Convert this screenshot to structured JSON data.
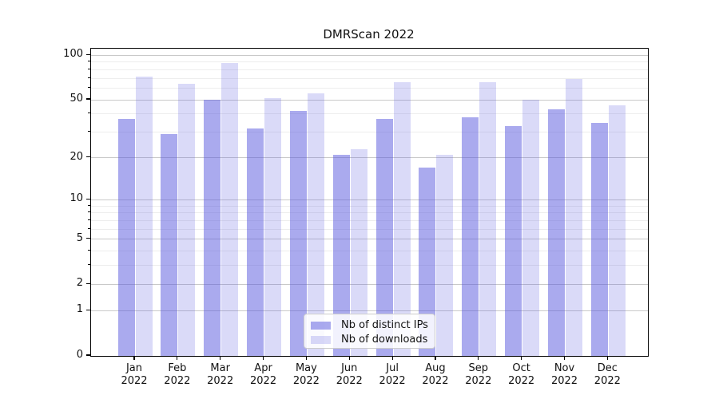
{
  "figure_title": "DMRScan 2022",
  "chart_data": {
    "type": "bar",
    "title": "DMRScan 2022",
    "categories": [
      "Jan 2022",
      "Feb 2022",
      "Mar 2022",
      "Apr 2022",
      "May 2022",
      "Jun 2022",
      "Jul 2022",
      "Aug 2022",
      "Sep 2022",
      "Oct 2022",
      "Nov 2022",
      "Dec 2022"
    ],
    "series": [
      {
        "name": "Nb of distinct IPs",
        "base_color": "#5555dd",
        "alpha": 0.5,
        "rendered_color": "#aaaaee",
        "values": [
          37,
          29,
          50,
          32,
          42,
          21,
          37,
          17,
          38,
          33,
          43,
          35
        ]
      },
      {
        "name": "Nb of downloads",
        "base_color": "#5555dd",
        "alpha": 0.22,
        "rendered_color": "#dadaf7",
        "values": [
          72,
          64,
          89,
          51,
          55,
          23,
          66,
          21,
          66,
          50,
          69,
          46
        ]
      }
    ],
    "xlabel": "",
    "ylabel": "",
    "yscale": "log1p",
    "ylim": [
      0,
      110
    ],
    "y_tick_values": [
      0,
      1,
      2,
      5,
      10,
      20,
      50,
      100
    ],
    "y_tick_labels": [
      "0",
      "1",
      "2",
      "5",
      "10",
      "20",
      "50",
      "100"
    ],
    "y_minor_tick_values": [
      3,
      4,
      6,
      7,
      8,
      9,
      30,
      40,
      60,
      70,
      80,
      90
    ],
    "grid": true,
    "legend_position": "lower center",
    "colors": {
      "grid_major": "#c9c9c9",
      "grid_minor": "#ededed",
      "axis": "#000000",
      "legend_border": "#cccccc",
      "legend_background": "#ffffff",
      "text": "#111111"
    }
  }
}
